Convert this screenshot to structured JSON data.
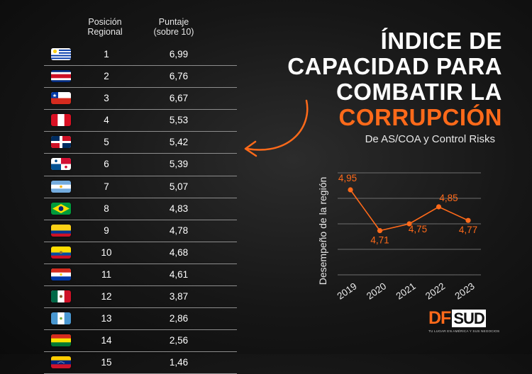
{
  "table": {
    "header_rank": "Posición\nRegional",
    "header_rank_l1": "Posición",
    "header_rank_l2": "Regional",
    "header_score_l1": "Puntaje",
    "header_score_l2": "(sobre 10)",
    "rows": [
      {
        "rank": "1",
        "score": "6,99",
        "flag": "uruguay-flag"
      },
      {
        "rank": "2",
        "score": "6,76",
        "flag": "costa-rica-flag"
      },
      {
        "rank": "3",
        "score": "6,67",
        "flag": "chile-flag"
      },
      {
        "rank": "4",
        "score": "5,53",
        "flag": "peru-flag"
      },
      {
        "rank": "5",
        "score": "5,42",
        "flag": "dominican-republic-flag"
      },
      {
        "rank": "6",
        "score": "5,39",
        "flag": "panama-flag"
      },
      {
        "rank": "7",
        "score": "5,07",
        "flag": "argentina-flag"
      },
      {
        "rank": "8",
        "score": "4,83",
        "flag": "brazil-flag"
      },
      {
        "rank": "9",
        "score": "4,78",
        "flag": "colombia-flag"
      },
      {
        "rank": "10",
        "score": "4,68",
        "flag": "ecuador-flag"
      },
      {
        "rank": "11",
        "score": "4,61",
        "flag": "paraguay-flag"
      },
      {
        "rank": "12",
        "score": "3,87",
        "flag": "mexico-flag"
      },
      {
        "rank": "13",
        "score": "2,86",
        "flag": "guatemala-flag"
      },
      {
        "rank": "14",
        "score": "2,56",
        "flag": "bolivia-flag"
      },
      {
        "rank": "15",
        "score": "1,46",
        "flag": "venezuela-flag"
      }
    ]
  },
  "title": {
    "line1": "ÍNDICE DE",
    "line2": "CAPACIDAD PARA",
    "line3": "COMBATIR LA",
    "line4": "CORRUPCIÓN",
    "subtitle": "De AS/COA y Control Risks"
  },
  "colors": {
    "accent": "#ff6a1a",
    "text": "#ffffff",
    "grid": "#6e6e6e",
    "background": "#1a1a1a"
  },
  "chart_data": {
    "type": "line",
    "x": [
      "2019",
      "2020",
      "2021",
      "2022",
      "2023"
    ],
    "series": [
      {
        "values": [
          4.95,
          4.71,
          4.75,
          4.85,
          4.77
        ],
        "labels": [
          "4,95",
          "4,71",
          "4,75",
          "4,85",
          "4,77"
        ]
      }
    ],
    "title": "",
    "xlabel": "",
    "ylabel": "Desempeño de la región",
    "ylim": [
      4.45,
      5.05
    ],
    "grid": true,
    "line_color": "#ff6a1a"
  },
  "logo": {
    "df": "DF",
    "sud": "SUD",
    "tagline": "TU LUGAR EN AMÉRICA Y SUS NEGOCIOS"
  }
}
